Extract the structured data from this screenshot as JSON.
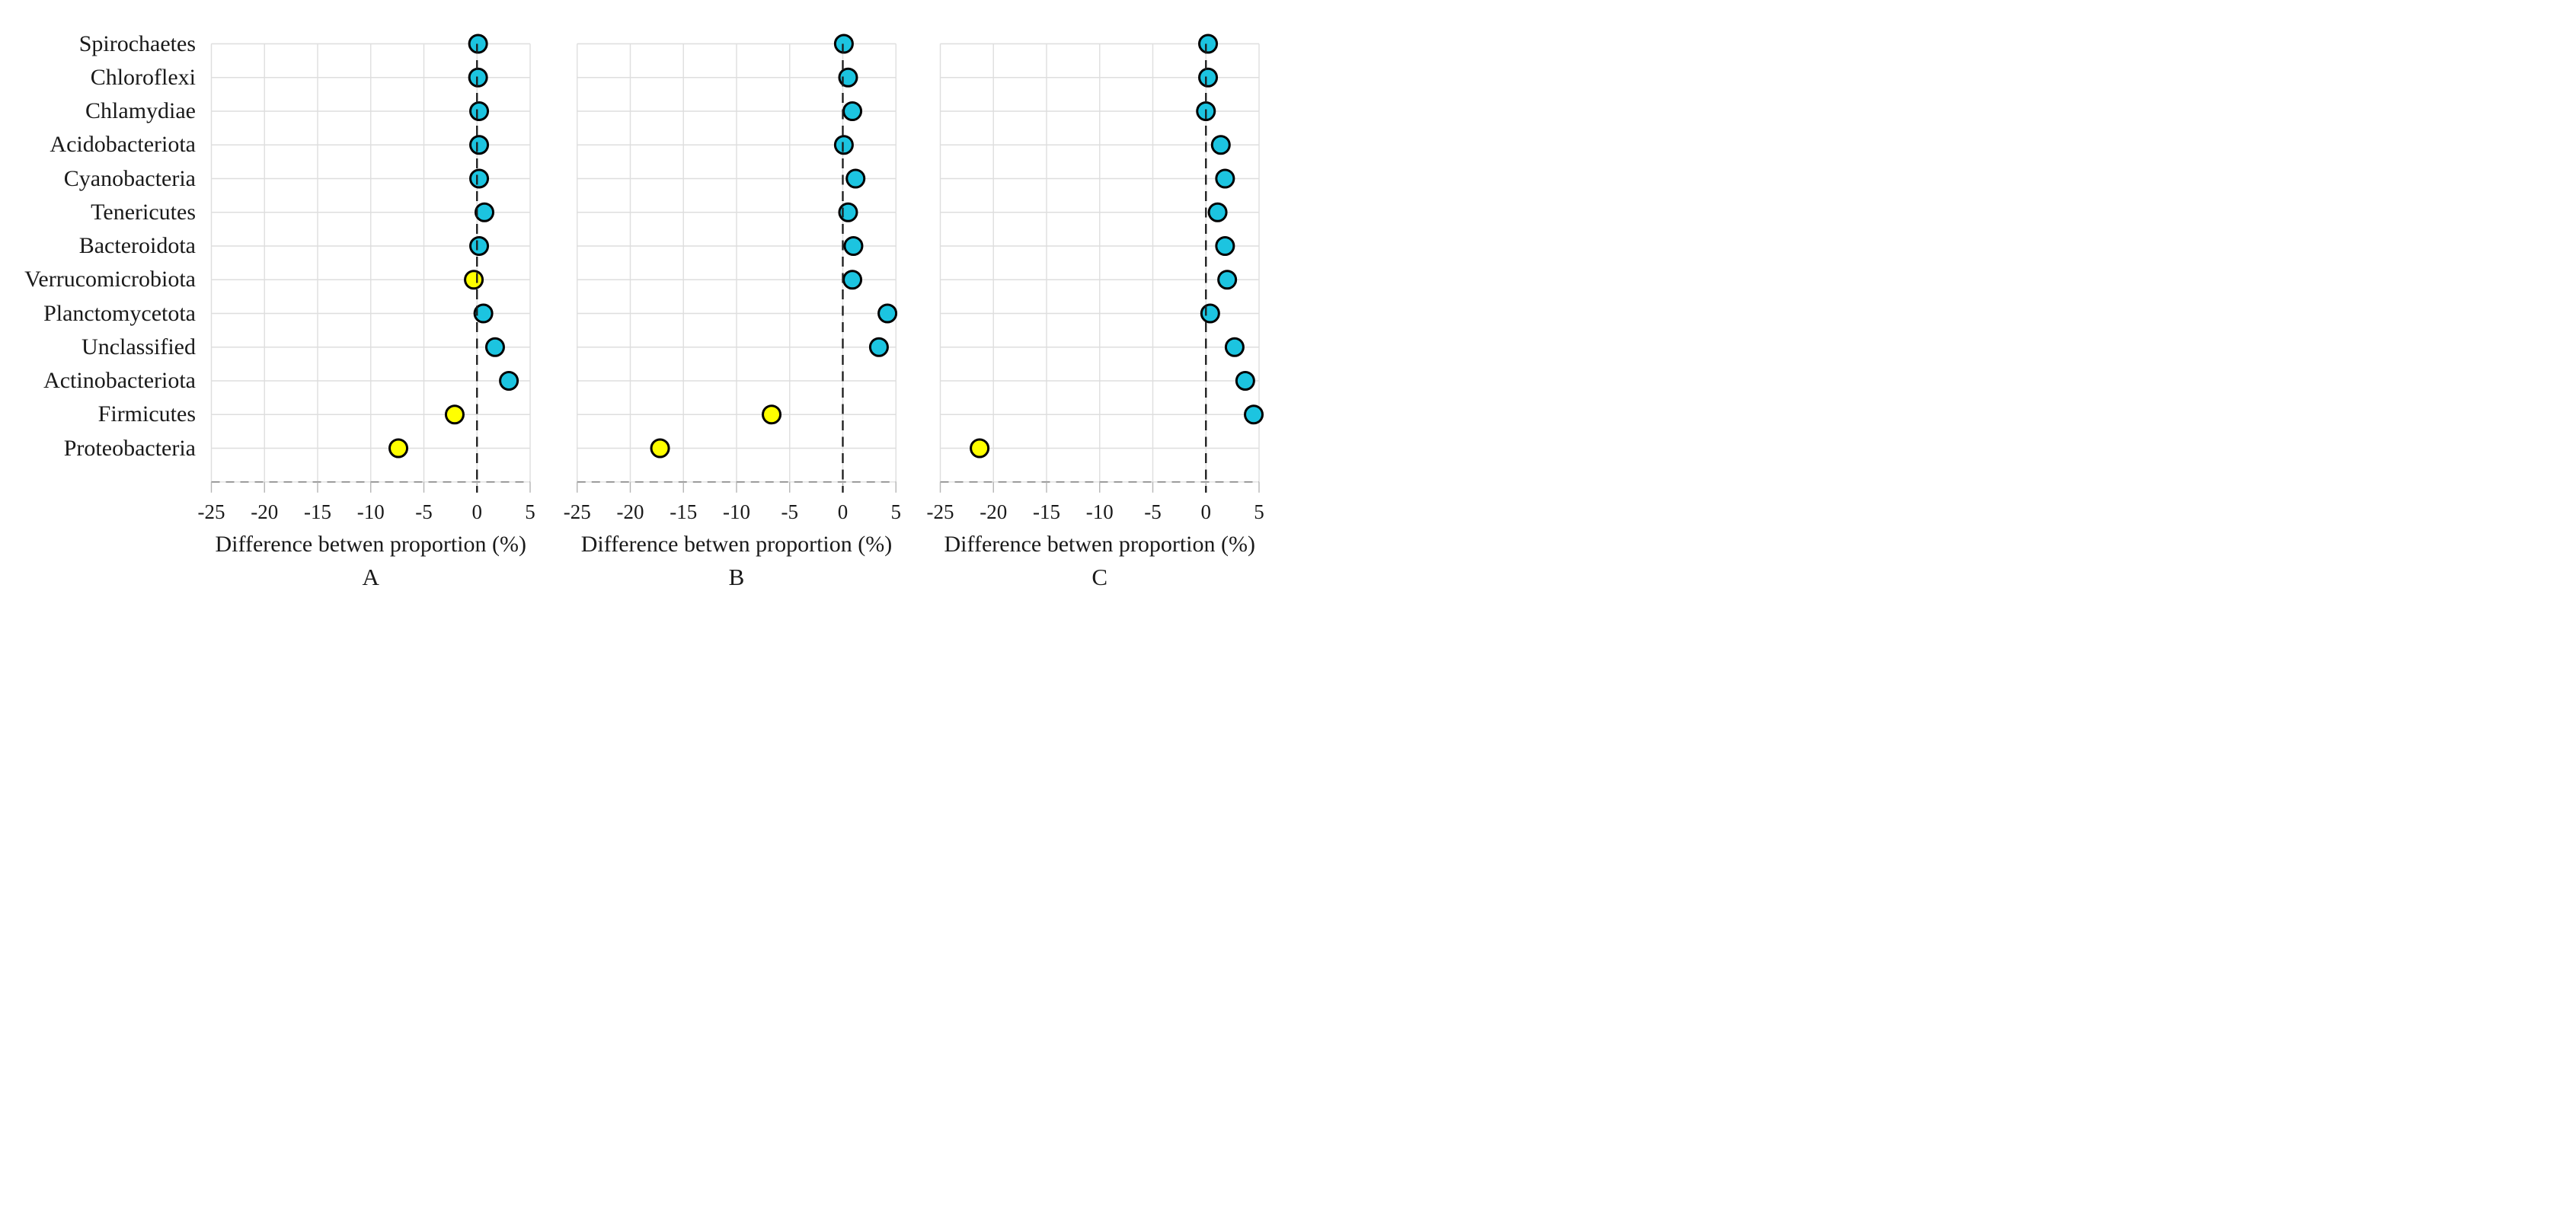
{
  "chart_data": {
    "type": "scatter",
    "figure_kind": "three-panel horizontal dot plot",
    "title": "",
    "categories": [
      "Spirochaetes",
      "Chloroflexi",
      "Chlamydiae",
      "Acidobacteriota",
      "Cyanobacteria",
      "Tenericutes",
      "Bacteroidota",
      "Verrucomicrobiota",
      "Planctomycetota",
      "Unclassified",
      "Actinobacteriota",
      "Firmicutes",
      "Proteobacteria"
    ],
    "x_ticks": [
      "-25",
      "-20",
      "-15",
      "-10",
      "-5",
      "0",
      "5"
    ],
    "x_axis": {
      "min": -25,
      "max": 5,
      "tick_step": 5,
      "zero_line_style": "dashed-black"
    },
    "grid": true,
    "legend": false,
    "colors": {
      "positive_fill": "#1CC4E0",
      "negative_fill": "#FFFF00",
      "point_outline": "#000000",
      "gridline": "#DEDEDE",
      "bottom_dash": "#8A8A8A",
      "axis_tick": "#B5B5B5",
      "zero_line": "#1A1A1A",
      "text": "#1A1A1A",
      "background": "#FFFFFF"
    },
    "panels": [
      {
        "label": "A",
        "xlabel": "Difference betwen proportion (%)",
        "values": [
          0.1,
          0.1,
          0.2,
          0.2,
          0.2,
          0.7,
          0.2,
          -0.3,
          0.6,
          1.7,
          3.0,
          -2.1,
          -7.4
        ],
        "point_colors": [
          "cyan",
          "cyan",
          "cyan",
          "cyan",
          "cyan",
          "cyan",
          "cyan",
          "yellow",
          "cyan",
          "cyan",
          "cyan",
          "yellow",
          "yellow"
        ]
      },
      {
        "label": "B",
        "xlabel": "Difference betwen proportion (%)",
        "values": [
          0.1,
          0.5,
          0.9,
          0.1,
          1.2,
          0.5,
          1.0,
          0.9,
          4.2,
          3.4,
          null,
          -6.7,
          -17.2
        ],
        "point_colors": [
          "cyan",
          "cyan",
          "cyan",
          "cyan",
          "cyan",
          "cyan",
          "cyan",
          "cyan",
          "cyan",
          "cyan",
          "none",
          "yellow",
          "yellow"
        ]
      },
      {
        "label": "C",
        "xlabel": "Difference betwen proportion (%)",
        "values": [
          0.2,
          0.2,
          0.0,
          1.4,
          1.8,
          1.1,
          1.8,
          2.0,
          0.4,
          2.7,
          3.7,
          4.5,
          -21.3
        ],
        "point_colors": [
          "cyan",
          "cyan",
          "cyan",
          "cyan",
          "cyan",
          "cyan",
          "cyan",
          "cyan",
          "cyan",
          "cyan",
          "cyan",
          "cyan",
          "yellow"
        ]
      }
    ]
  }
}
